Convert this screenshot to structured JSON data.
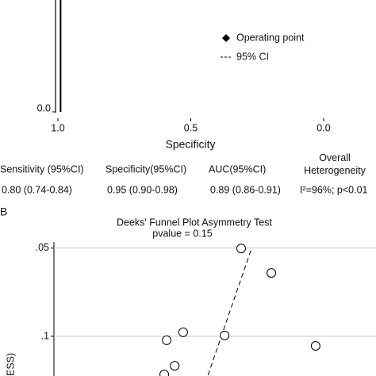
{
  "chart_data": [
    {
      "type": "line",
      "xlabel": "Specificity",
      "xlim": [
        1.0,
        0.0
      ],
      "xticks": [
        {
          "value": 1.0,
          "label": "1.0"
        },
        {
          "value": 0.5,
          "label": "0.5"
        },
        {
          "value": 0.0,
          "label": "0.0"
        }
      ],
      "ylim": [
        0.0,
        0.45
      ],
      "yticks": [
        {
          "value": 0.0,
          "label": "0.0"
        }
      ],
      "series": [
        {
          "color": "#000000",
          "x": [
            0.99,
            0.99
          ],
          "values": [
            0.0,
            0.45
          ]
        }
      ],
      "legend": [
        {
          "label": "Operating point",
          "marker": "diamond"
        },
        {
          "label": "95% CI",
          "style": "dashed"
        }
      ]
    },
    {
      "type": "scatter",
      "title": "Deeks' Funnel Plot Asymmetry Test",
      "subtitle": "pvalue =  0.15",
      "ylabel": "ESS)",
      "xlim": [
        0,
        8
      ],
      "ylim": [
        0.0465,
        0.1225
      ],
      "y_inverted": true,
      "yticks": [
        {
          "value": 0.05,
          "label": ".05"
        },
        {
          "value": 0.1,
          "label": ".1"
        }
      ],
      "grid": true,
      "series": [
        {
          "color": "#000000",
          "x": [
            4.65,
            5.4,
            3.21,
            2.8,
            4.24,
            6.5,
            3.0,
            2.74
          ],
          "values": [
            0.0502,
            0.0641,
            0.0977,
            0.1022,
            0.0995,
            0.1054,
            0.1167,
            0.1216
          ]
        }
      ],
      "fit_line": {
        "style": "dashed",
        "x": [
          4.89,
          3.82
        ],
        "values": [
          0.0514,
          0.1225
        ]
      }
    }
  ],
  "table": {
    "headers": [
      "Sensitivity (95%CI)",
      "Specificity(95%CI)",
      "AUC(95%CI)",
      "Overall Heterogeneity"
    ],
    "rows": [
      [
        "0.80 (0.74-0.84)",
        "0.95 (0.90-0.98)",
        "0.89 (0.86-0.91)",
        "I²=96%; p<0.01"
      ]
    ]
  },
  "panel_label": "B"
}
